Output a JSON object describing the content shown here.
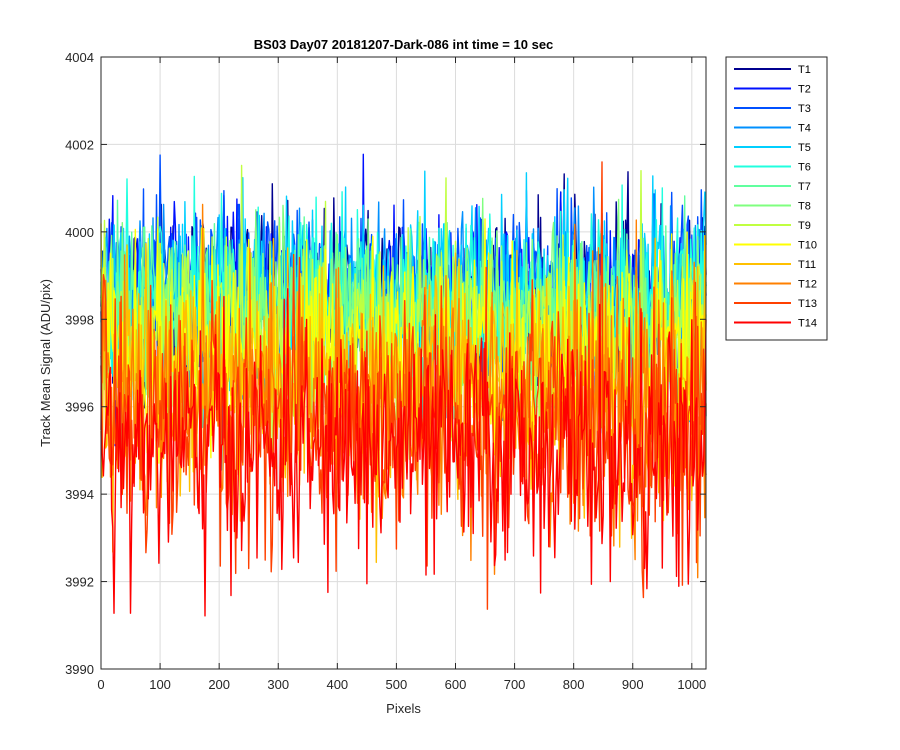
{
  "chart_data": {
    "type": "line",
    "title": "BS03 Day07 20181207-Dark-086 int time = 10 sec",
    "xlabel": "Pixels",
    "ylabel": "Track Mean Signal (ADU/pix)",
    "xlim": [
      0,
      1024
    ],
    "ylim": [
      3990,
      4004
    ],
    "xticks": [
      0,
      100,
      200,
      300,
      400,
      500,
      600,
      700,
      800,
      900,
      1000
    ],
    "yticks": [
      3990,
      3992,
      3994,
      3996,
      3998,
      4000,
      4002,
      4004
    ],
    "grid": true,
    "legend_position": "outside-right-top",
    "note_values": "Per-pixel values are noise-like; generated per series from the visible mean and spread.",
    "series": [
      {
        "name": "T1",
        "color": "#00008F",
        "mean": 3998.6,
        "spread": 1.0
      },
      {
        "name": "T2",
        "color": "#0010FF",
        "mean": 3998.5,
        "spread": 1.0
      },
      {
        "name": "T3",
        "color": "#0050FF",
        "mean": 3998.6,
        "spread": 1.0
      },
      {
        "name": "T4",
        "color": "#0090FF",
        "mean": 3998.4,
        "spread": 1.0
      },
      {
        "name": "T5",
        "color": "#00CFFF",
        "mean": 3998.5,
        "spread": 1.05
      },
      {
        "name": "T6",
        "color": "#20FFDF",
        "mean": 3998.3,
        "spread": 1.0
      },
      {
        "name": "T7",
        "color": "#60FF9F",
        "mean": 3998.1,
        "spread": 1.0
      },
      {
        "name": "T8",
        "color": "#7FFF7F",
        "mean": 3998.0,
        "spread": 1.05
      },
      {
        "name": "T9",
        "color": "#C0FF40",
        "mean": 3997.6,
        "spread": 1.1
      },
      {
        "name": "T10",
        "color": "#FFFF00",
        "mean": 3997.2,
        "spread": 1.2
      },
      {
        "name": "T11",
        "color": "#FFC000",
        "mean": 3996.5,
        "spread": 1.3
      },
      {
        "name": "T12",
        "color": "#FF8000",
        "mean": 3996.0,
        "spread": 1.4
      },
      {
        "name": "T13",
        "color": "#FF4000",
        "mean": 3995.6,
        "spread": 1.4
      },
      {
        "name": "T14",
        "color": "#FF0000",
        "mean": 3995.0,
        "spread": 1.35
      }
    ]
  }
}
